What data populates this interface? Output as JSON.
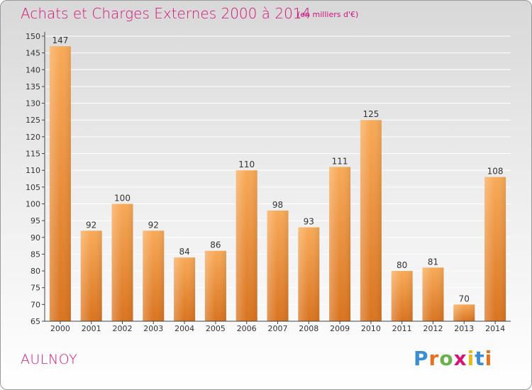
{
  "header": {
    "title": "Achats et Charges Externes 2000 à 2014",
    "unit": "(en milliers d'€)"
  },
  "footer": {
    "commune": "AULNOY",
    "logo": "Proxiti",
    "logo_colors": [
      "#3a8fd4",
      "#e8701e",
      "#6ab04c",
      "#d4147a",
      "#e8b81e",
      "#3a8fd4",
      "#e8701e"
    ]
  },
  "colors": {
    "bar_light": "#f8aa58",
    "bar_dark": "#d97420",
    "title": "#d4147a",
    "grid": "#ffffff",
    "axis": "#444444"
  },
  "chart_data": {
    "type": "bar",
    "title": "Achats et Charges Externes 2000 à 2014",
    "subtitle": "(en milliers d'€)",
    "xlabel": "",
    "ylabel": "",
    "categories": [
      "2000",
      "2001",
      "2002",
      "2003",
      "2004",
      "2005",
      "2006",
      "2007",
      "2008",
      "2009",
      "2010",
      "2011",
      "2012",
      "2013",
      "2014"
    ],
    "values": [
      147,
      92,
      100,
      92,
      84,
      86,
      110,
      98,
      93,
      111,
      125,
      80,
      81,
      70,
      108
    ],
    "ylim": [
      65,
      150
    ],
    "yticks": [
      65,
      70,
      75,
      80,
      85,
      90,
      95,
      100,
      105,
      110,
      115,
      120,
      125,
      130,
      135,
      140,
      145,
      150
    ],
    "grid": true,
    "legend": "none"
  }
}
